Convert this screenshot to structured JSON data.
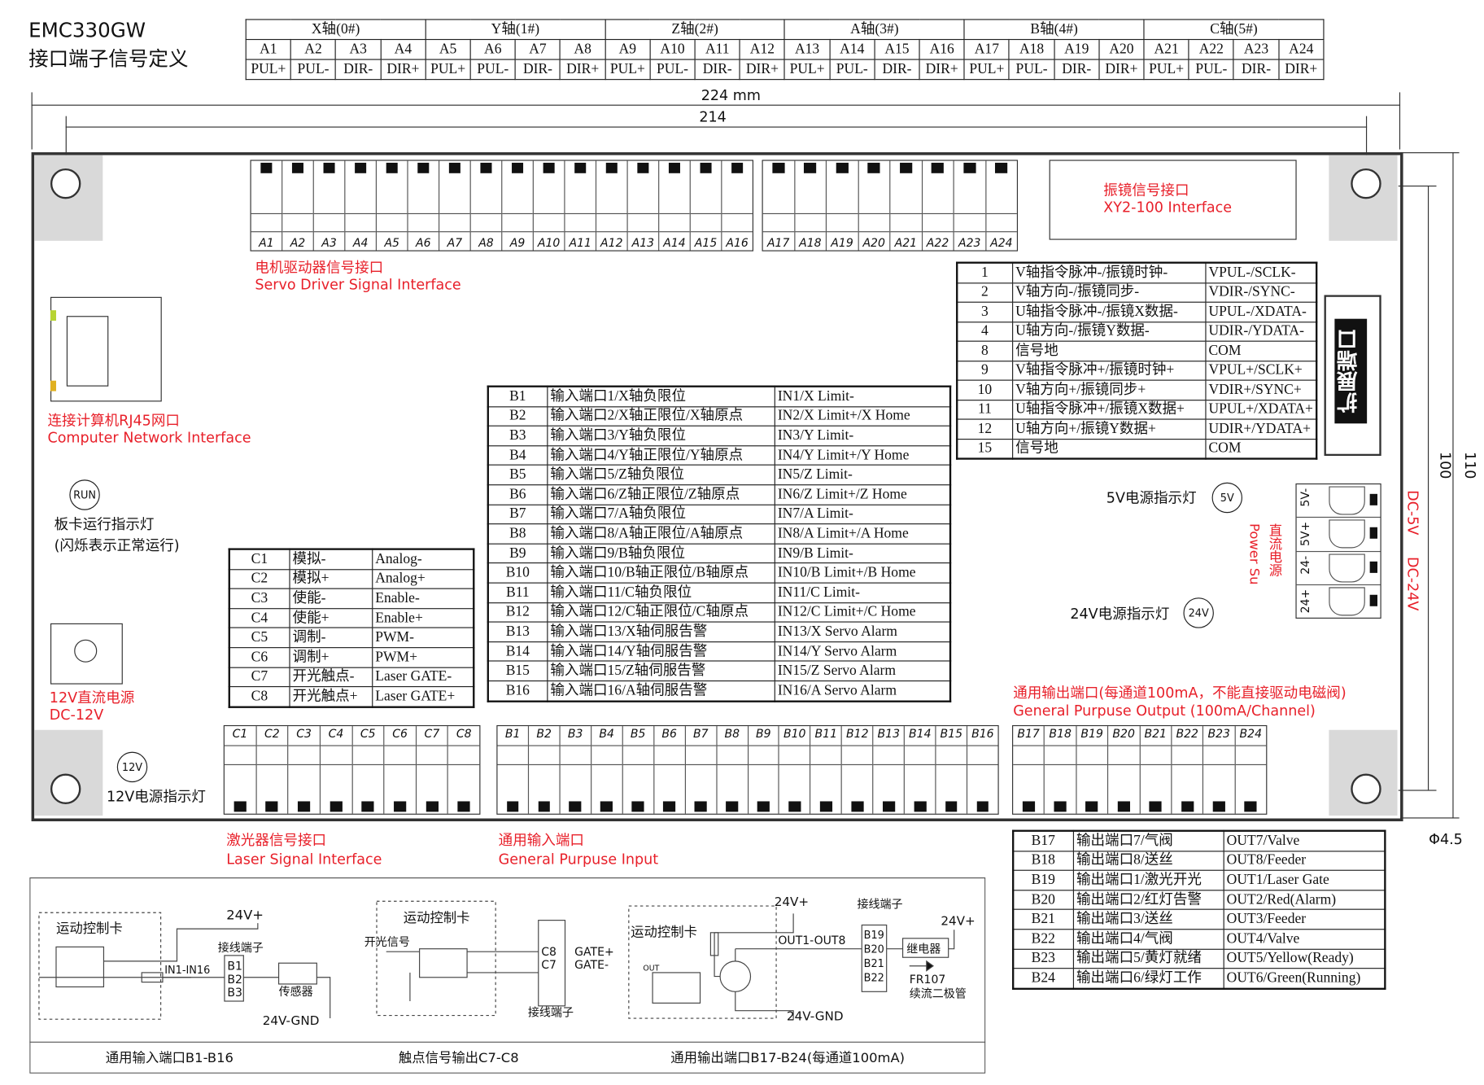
{
  "title": {
    "model": "EMC330GW",
    "subtitle": "接口端子信号定义"
  },
  "axis_table": {
    "axes": [
      "X轴(0#)",
      "Y轴(1#)",
      "Z轴(2#)",
      "A轴(3#)",
      "B轴(4#)",
      "C轴(5#)"
    ],
    "pins": [
      "A1",
      "A2",
      "A3",
      "A4",
      "A5",
      "A6",
      "A7",
      "A8",
      "A9",
      "A10",
      "A11",
      "A12",
      "A13",
      "A14",
      "A15",
      "A16",
      "A17",
      "A18",
      "A19",
      "A20",
      "A21",
      "A22",
      "A23",
      "A24"
    ],
    "signals": [
      "PUL+",
      "PUL-",
      "DIR-",
      "DIR+",
      "PUL+",
      "PUL-",
      "DIR-",
      "DIR+",
      "PUL+",
      "PUL-",
      "DIR-",
      "DIR+",
      "PUL+",
      "PUL-",
      "DIR-",
      "DIR+",
      "PUL+",
      "PUL-",
      "DIR-",
      "DIR+",
      "PUL+",
      "PUL-",
      "DIR-",
      "DIR+"
    ]
  },
  "dimensions": {
    "width_outer": "224 mm",
    "width_holes": "214",
    "height_holes": "100",
    "height_outer": "110",
    "hole_diameter": "Φ4.5"
  },
  "connectors": {
    "top_a1_a16": [
      "A1",
      "A2",
      "A3",
      "A4",
      "A5",
      "A6",
      "A7",
      "A8",
      "A9",
      "A10",
      "A11",
      "A12",
      "A13",
      "A14",
      "A15",
      "A16"
    ],
    "top_a17_a24": [
      "A17",
      "A18",
      "A19",
      "A20",
      "A21",
      "A22",
      "A23",
      "A24"
    ],
    "bottom_c": [
      "C1",
      "C2",
      "C3",
      "C4",
      "C5",
      "C6",
      "C7",
      "C8"
    ],
    "bottom_b1_b16": [
      "B1",
      "B2",
      "B3",
      "B4",
      "B5",
      "B6",
      "B7",
      "B8",
      "B9",
      "B10",
      "B11",
      "B12",
      "B13",
      "B14",
      "B15",
      "B16"
    ],
    "bottom_b17_b24": [
      "B17",
      "B18",
      "B19",
      "B20",
      "B21",
      "B22",
      "B23",
      "B24"
    ],
    "power": [
      "5V-",
      "5V+",
      "24-",
      "24+"
    ]
  },
  "labels": {
    "servo_cn": "电机驱动器信号接口",
    "servo_en": "Servo Driver Signal Interface",
    "xy2_cn": "振镜信号接口",
    "xy2_en": "XY2-100 Interface",
    "rj45_cn": "连接计算机RJ45网口",
    "rj45_en": "Computer Network Interface",
    "run_led": "RUN",
    "run_cn": "板卡运行指示灯",
    "run_note": "(闪烁表示正常运行)",
    "power12_cn": "12V直流电源",
    "power12_en": "DC-12V",
    "led12": "12V",
    "led12_cn": "12V电源指示灯",
    "led5": "5V",
    "led5_cn": "5V电源指示灯",
    "led24": "24V",
    "led24_cn": "24V电源指示灯",
    "dc_cn": "直流电源",
    "dc_en": "Power Su",
    "dc5": "DC-5V",
    "dc24": "DC-24V",
    "expansion": "扩展端口",
    "output_cn": "通用输出端口(每通道100mA，不能直接驱动电磁阀)",
    "output_en": "General Purpuse Output (100mA/Channel)",
    "laser_cn": "激光器信号接口",
    "laser_en": "Laser Signal Interface",
    "input_cn": "通用输入端口",
    "input_en": "General Purpuse Input"
  },
  "expansion_table": [
    [
      "1",
      "V轴指令脉冲-/振镜时钟-",
      "VPUL-/SCLK-"
    ],
    [
      "2",
      "V轴方向-/振镜同步-",
      "VDIR-/SYNC-"
    ],
    [
      "3",
      "U轴指令脉冲-/振镜X数据-",
      "UPUL-/XDATA-"
    ],
    [
      "4",
      "U轴方向-/振镜Y数据-",
      "UDIR-/YDATA-"
    ],
    [
      "8",
      "信号地",
      "COM"
    ],
    [
      "9",
      "V轴指令脉冲+/振镜时钟+",
      "VPUL+/SCLK+"
    ],
    [
      "10",
      "V轴方向+/振镜同步+",
      "VDIR+/SYNC+"
    ],
    [
      "11",
      "U轴指令脉冲+/振镜X数据+",
      "UPUL+/XDATA+"
    ],
    [
      "12",
      "U轴方向+/振镜Y数据+",
      "UDIR+/YDATA+"
    ],
    [
      "15",
      "信号地",
      "COM"
    ]
  ],
  "input_table": [
    [
      "B1",
      "输入端口1/X轴负限位",
      "IN1/X Limit-"
    ],
    [
      "B2",
      "输入端口2/X轴正限位/X轴原点",
      "IN2/X Limit+/X Home"
    ],
    [
      "B3",
      "输入端口3/Y轴负限位",
      "IN3/Y Limit-"
    ],
    [
      "B4",
      "输入端口4/Y轴正限位/Y轴原点",
      "IN4/Y Limit+/Y Home"
    ],
    [
      "B5",
      "输入端口5/Z轴负限位",
      "IN5/Z Limit-"
    ],
    [
      "B6",
      "输入端口6/Z轴正限位/Z轴原点",
      "IN6/Z Limit+/Z Home"
    ],
    [
      "B7",
      "输入端口7/A轴负限位",
      "IN7/A Limit-"
    ],
    [
      "B8",
      "输入端口8/A轴正限位/A轴原点",
      "IN8/A Limit+/A Home"
    ],
    [
      "B9",
      "输入端口9/B轴负限位",
      "IN9/B Limit-"
    ],
    [
      "B10",
      "输入端口10/B轴正限位/B轴原点",
      "IN10/B Limit+/B Home"
    ],
    [
      "B11",
      "输入端口11/C轴负限位",
      "IN11/C Limit-"
    ],
    [
      "B12",
      "输入端口12/C轴正限位/C轴原点",
      "IN12/C Limit+/C Home"
    ],
    [
      "B13",
      "输入端口13/X轴伺服告警",
      "IN13/X Servo Alarm"
    ],
    [
      "B14",
      "输入端口14/Y轴伺服告警",
      "IN14/Y Servo Alarm"
    ],
    [
      "B15",
      "输入端口15/Z轴伺服告警",
      "IN15/Z Servo Alarm"
    ],
    [
      "B16",
      "输入端口16/A轴伺服告警",
      "IN16/A Servo Alarm"
    ]
  ],
  "laser_table": [
    [
      "C1",
      "模拟-",
      "Analog-"
    ],
    [
      "C2",
      "模拟+",
      "Analog+"
    ],
    [
      "C3",
      "使能-",
      "Enable-"
    ],
    [
      "C4",
      "使能+",
      "Enable+"
    ],
    [
      "C5",
      "调制-",
      "PWM-"
    ],
    [
      "C6",
      "调制+",
      "PWM+"
    ],
    [
      "C7",
      "开光触点-",
      "Laser GATE-"
    ],
    [
      "C8",
      "开光触点+",
      "Laser GATE+"
    ]
  ],
  "output_table": [
    [
      "B17",
      "输出端口7/气阀",
      "OUT7/Valve"
    ],
    [
      "B18",
      "输出端口8/送丝",
      "OUT8/Feeder"
    ],
    [
      "B19",
      "输出端口1/激光开光",
      "OUT1/Laser Gate"
    ],
    [
      "B20",
      "输出端口2/红灯告警",
      "OUT2/Red(Alarm)"
    ],
    [
      "B21",
      "输出端口3/送丝",
      "OUT3/Feeder"
    ],
    [
      "B22",
      "输出端口4/气阀",
      "OUT4/Valve"
    ],
    [
      "B23",
      "输出端口5/黄灯就绪",
      "OUT5/Yellow(Ready)"
    ],
    [
      "B24",
      "输出端口6/绿灯工作",
      "OUT6/Green(Running)"
    ]
  ],
  "circuits": {
    "card": "运动控制卡",
    "v24p": "24V+",
    "terminal": "接线端子",
    "in_range": "IN1-IN16",
    "in_pins": [
      "B1",
      "B2",
      "B3"
    ],
    "sensor": "传感器",
    "gnd": "24V-GND",
    "switch_sig": "开光信号",
    "gate_pins": [
      "C8",
      "C7"
    ],
    "gate_plus": "GATE+",
    "gate_minus": "GATE-",
    "out_tag": "OUT",
    "out_range": "OUT1-OUT8",
    "out_pins": [
      "B19",
      "B20",
      "B21",
      "B22"
    ],
    "relay": "继电器",
    "diode": "FR107",
    "diode_cn": "续流二极管",
    "caption_in": "通用输入端口B1-B16",
    "caption_gate": "触点信号输出C7-C8",
    "caption_out": "通用输出端口B17-B24(每通道100mA)"
  },
  "colors": {
    "accent_red": "#e8202a",
    "corner_gray": "#d9d9d9"
  }
}
